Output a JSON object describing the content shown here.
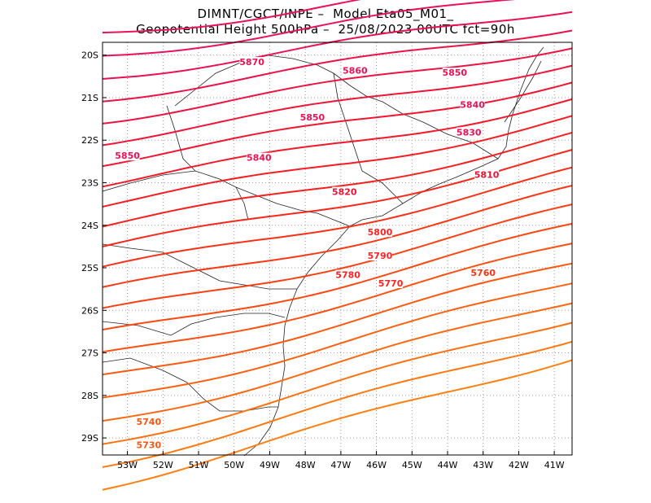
{
  "header": {
    "line1": "DIMNT/CGCT/INPE –  Model Eta05_M01_",
    "line2": "Geopotential Height 500hPa –  25/08/2023 00UTC fct=90h"
  },
  "map": {
    "lon_range": [
      -53.7,
      -40.5
    ],
    "lat_range": [
      -29.4,
      -19.7
    ],
    "grid": true,
    "grid_style": "dotted",
    "x_ticks": [
      {
        "lon": -53,
        "label": "53W"
      },
      {
        "lon": -52,
        "label": "52W"
      },
      {
        "lon": -51,
        "label": "51W"
      },
      {
        "lon": -50,
        "label": "50W"
      },
      {
        "lon": -49,
        "label": "49W"
      },
      {
        "lon": -48,
        "label": "48W"
      },
      {
        "lon": -47,
        "label": "47W"
      },
      {
        "lon": -46,
        "label": "46W"
      },
      {
        "lon": -45,
        "label": "45W"
      },
      {
        "lon": -44,
        "label": "44W"
      },
      {
        "lon": -43,
        "label": "43W"
      },
      {
        "lon": -42,
        "label": "42W"
      },
      {
        "lon": -41,
        "label": "41W"
      }
    ],
    "y_ticks": [
      {
        "lat": -20,
        "label": "20S"
      },
      {
        "lat": -21,
        "label": "21S"
      },
      {
        "lat": -22,
        "label": "22S"
      },
      {
        "lat": -23,
        "label": "23S"
      },
      {
        "lat": -24,
        "label": "24S"
      },
      {
        "lat": -25,
        "label": "25S"
      },
      {
        "lat": -26,
        "label": "26S"
      },
      {
        "lat": -27,
        "label": "27S"
      },
      {
        "lat": -28,
        "label": "28S"
      },
      {
        "lat": -29,
        "label": "29S"
      }
    ],
    "contour_labels": [
      {
        "text": "5870",
        "lon": -49.5,
        "lat": -20.2,
        "color": "#ee1155"
      },
      {
        "text": "5860",
        "lon": -46.6,
        "lat": -20.4,
        "color": "#ee1155"
      },
      {
        "text": "5850",
        "lon": -43.8,
        "lat": -20.45,
        "color": "#ee1155"
      },
      {
        "text": "5840",
        "lon": -43.3,
        "lat": -21.2,
        "color": "#ee1155"
      },
      {
        "text": "5850",
        "lon": -47.8,
        "lat": -21.5,
        "color": "#ee1155"
      },
      {
        "text": "5830",
        "lon": -43.4,
        "lat": -21.85,
        "color": "#ee1155"
      },
      {
        "text": "5850",
        "lon": -53.0,
        "lat": -22.4,
        "color": "#ee1155"
      },
      {
        "text": "5840",
        "lon": -49.3,
        "lat": -22.45,
        "color": "#ee1155"
      },
      {
        "text": "5810",
        "lon": -42.9,
        "lat": -22.85,
        "color": "#ee1133"
      },
      {
        "text": "5820",
        "lon": -46.9,
        "lat": -23.25,
        "color": "#ee1133"
      },
      {
        "text": "5800",
        "lon": -45.9,
        "lat": -24.2,
        "color": "#ff2222"
      },
      {
        "text": "5790",
        "lon": -45.9,
        "lat": -24.75,
        "color": "#ff2222"
      },
      {
        "text": "5780",
        "lon": -46.8,
        "lat": -25.2,
        "color": "#ff2222"
      },
      {
        "text": "5770",
        "lon": -45.6,
        "lat": -25.4,
        "color": "#ff2222"
      },
      {
        "text": "5760",
        "lon": -43.0,
        "lat": -25.15,
        "color": "#ff3311"
      },
      {
        "text": "5740",
        "lon": -52.4,
        "lat": -28.65,
        "color": "#ff5511"
      },
      {
        "text": "5730",
        "lon": -52.4,
        "lat": -29.2,
        "color": "#ff5511"
      }
    ]
  }
}
